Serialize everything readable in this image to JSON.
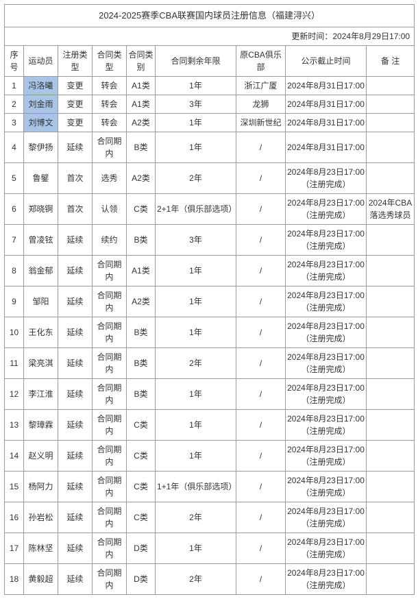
{
  "title": "2024-2025赛季CBA联赛国内球员注册信息（福建浔兴）",
  "update_label": "更新时间：2024年8月29日17:00",
  "headers": {
    "idx": "序 号",
    "name": "运动员",
    "reg_type": "注册类型",
    "contract_type": "合同类型",
    "contract_cat": "合同类别",
    "remaining": "合同剩余年限",
    "prev_club": "原CBA俱乐部",
    "deadline": "公示截止时间",
    "note": "备 注"
  },
  "deadline_a": "2024年8月31日17:00",
  "deadline_b_line1": "2024年8月23日17:00",
  "deadline_b_line2": "（注册完成）",
  "note_row6": "2024年CBA落选秀球员",
  "rows": [
    {
      "idx": "1",
      "name": "冯洛曦",
      "reg": "变更",
      "ctype": "转会",
      "ccat": "A1类",
      "rem": "1年",
      "prev": "浙江广厦",
      "dead": "a",
      "note": "",
      "hl": true
    },
    {
      "idx": "2",
      "name": "刘金雨",
      "reg": "变更",
      "ctype": "转会",
      "ccat": "A1类",
      "rem": "3年",
      "prev": "龙狮",
      "dead": "a",
      "note": "",
      "hl": true
    },
    {
      "idx": "3",
      "name": "刘博文",
      "reg": "变更",
      "ctype": "转会",
      "ccat": "A2类",
      "rem": "1年",
      "prev": "深圳新世纪",
      "dead": "a",
      "note": "",
      "hl": true
    },
    {
      "idx": "4",
      "name": "黎伊扬",
      "reg": "延续",
      "ctype": "合同期内",
      "ccat": "B类",
      "rem": "1年",
      "prev": "/",
      "dead": "a",
      "note": ""
    },
    {
      "idx": "5",
      "name": "鲁鐾",
      "reg": "首次",
      "ctype": "选秀",
      "ccat": "A2类",
      "rem": "2年",
      "prev": "/",
      "dead": "b",
      "note": ""
    },
    {
      "idx": "6",
      "name": "郑晓锕",
      "reg": "首次",
      "ctype": "认领",
      "ccat": "C类",
      "rem": "2+1年（俱乐部选项）",
      "prev": "/",
      "dead": "b",
      "note": "note6"
    },
    {
      "idx": "7",
      "name": "曾凌铉",
      "reg": "延续",
      "ctype": "续约",
      "ccat": "B类",
      "rem": "3年",
      "prev": "/",
      "dead": "b",
      "note": ""
    },
    {
      "idx": "8",
      "name": "翁金郁",
      "reg": "延续",
      "ctype": "合同期内",
      "ccat": "A1类",
      "rem": "1年",
      "prev": "/",
      "dead": "b",
      "note": ""
    },
    {
      "idx": "9",
      "name": "邹阳",
      "reg": "延续",
      "ctype": "合同期内",
      "ccat": "A2类",
      "rem": "1年",
      "prev": "/",
      "dead": "b",
      "note": ""
    },
    {
      "idx": "10",
      "name": "王化东",
      "reg": "延续",
      "ctype": "合同期内",
      "ccat": "B类",
      "rem": "1年",
      "prev": "/",
      "dead": "b",
      "note": ""
    },
    {
      "idx": "11",
      "name": "梁亮淇",
      "reg": "延续",
      "ctype": "合同期内",
      "ccat": "B类",
      "rem": "2年",
      "prev": "/",
      "dead": "b",
      "note": ""
    },
    {
      "idx": "12",
      "name": "李江淮",
      "reg": "延续",
      "ctype": "合同期内",
      "ccat": "B类",
      "rem": "1年",
      "prev": "/",
      "dead": "b",
      "note": ""
    },
    {
      "idx": "13",
      "name": "黎璋霖",
      "reg": "延续",
      "ctype": "合同期内",
      "ccat": "C类",
      "rem": "1年",
      "prev": "/",
      "dead": "b",
      "note": ""
    },
    {
      "idx": "14",
      "name": "赵义明",
      "reg": "延续",
      "ctype": "合同期内",
      "ccat": "C类",
      "rem": "1年",
      "prev": "/",
      "dead": "b",
      "note": ""
    },
    {
      "idx": "15",
      "name": "杨阿力",
      "reg": "延续",
      "ctype": "合同期内",
      "ccat": "C类",
      "rem": "1+1年（俱乐部选项）",
      "prev": "/",
      "dead": "b",
      "note": ""
    },
    {
      "idx": "16",
      "name": "孙岩松",
      "reg": "延续",
      "ctype": "合同期内",
      "ccat": "C类",
      "rem": "2年",
      "prev": "/",
      "dead": "b",
      "note": ""
    },
    {
      "idx": "17",
      "name": "陈林坚",
      "reg": "延续",
      "ctype": "合同期内",
      "ccat": "D类",
      "rem": "1年",
      "prev": "/",
      "dead": "b",
      "note": ""
    },
    {
      "idx": "18",
      "name": "黄毅超",
      "reg": "延续",
      "ctype": "合同期内",
      "ccat": "D类",
      "rem": "2年",
      "prev": "/",
      "dead": "b",
      "note": ""
    }
  ]
}
